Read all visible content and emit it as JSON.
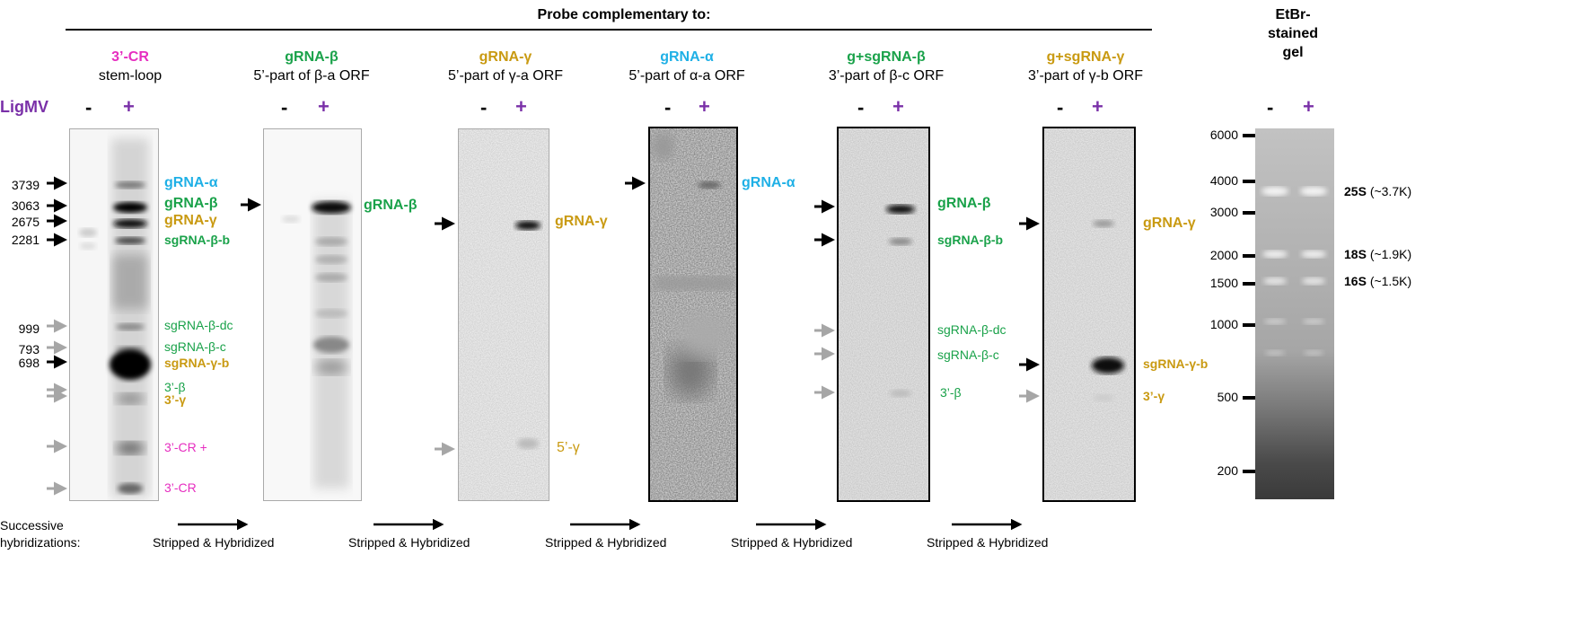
{
  "header": {
    "title": "Probe complementary to:"
  },
  "ligmv_label": "LigMV",
  "minus": "-",
  "plus": "+",
  "colors": {
    "magenta": "#e62ec0",
    "green": "#1aa24a",
    "gold": "#c99a12",
    "cyan": "#1fb0e6",
    "purple": "#7a30a8"
  },
  "panels": [
    {
      "name": "3’-CR",
      "desc": "stem-loop"
    },
    {
      "name": "gRNA-β",
      "desc": "5’-part of β-a ORF"
    },
    {
      "name": "gRNA-γ",
      "desc": "5’-part of γ-a ORF"
    },
    {
      "name": "gRNA-α",
      "desc": "5’-part of α-a ORF"
    },
    {
      "name": "g+sgRNA-β",
      "desc": "3’-part of β-c ORF"
    },
    {
      "name": "g+sgRNA-γ",
      "desc": "3’-part of γ-b ORF"
    }
  ],
  "sizes": [
    "3739",
    "3063",
    "2675",
    "2281",
    "999",
    "793",
    "698"
  ],
  "panel1_bands": [
    "gRNA-α",
    "gRNA-β",
    "gRNA-γ",
    "sgRNA-β-b",
    "sgRNA-β-dc",
    "sgRNA-β-c",
    "sgRNA-γ-b",
    "3’-β",
    "3’-γ",
    "3’-CR +",
    "3’-CR"
  ],
  "panel2_bands": [
    "gRNA-β"
  ],
  "panel3_bands": [
    "gRNA-γ",
    "5’-γ"
  ],
  "panel4_bands": [
    "gRNA-α"
  ],
  "panel5_bands": [
    "gRNA-β",
    "sgRNA-β-b",
    "sgRNA-β-dc",
    "sgRNA-β-c",
    "3’-β"
  ],
  "panel6_bands": [
    "gRNA-γ",
    "sgRNA-γ-b",
    "3’-γ"
  ],
  "etbr": {
    "title_lines": [
      "EtBr-",
      "stained",
      "gel"
    ],
    "ladder": [
      "6000",
      "4000",
      "3000",
      "2000",
      "1500",
      "1000",
      "500",
      "200"
    ],
    "rrna": [
      {
        "name": "25S",
        "size": "(~3.7K)"
      },
      {
        "name": "18S",
        "size": "(~1.9K)"
      },
      {
        "name": "16S",
        "size": "(~1.5K)"
      }
    ]
  },
  "footer": {
    "label_lines": [
      "Successive",
      "hybridizations:"
    ],
    "step": "Stripped & Hybridized"
  }
}
